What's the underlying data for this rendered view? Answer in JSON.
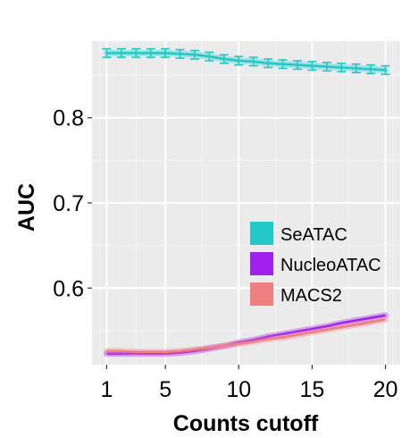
{
  "chart_data": {
    "type": "line",
    "xlabel": "Counts cutoff",
    "ylabel": "AUC",
    "x": [
      1,
      2,
      3,
      4,
      5,
      6,
      7,
      8,
      9,
      10,
      11,
      12,
      13,
      14,
      15,
      16,
      17,
      18,
      19,
      20
    ],
    "xticks": [
      1,
      5,
      10,
      15,
      20
    ],
    "yticks": [
      0.6,
      0.7,
      0.8
    ],
    "xticklabels": [
      "1",
      "5",
      "10",
      "15",
      "20"
    ],
    "yticklabels": [
      "0.6",
      "0.7",
      "0.8"
    ],
    "xlim": [
      0,
      21
    ],
    "ylim": [
      0.51,
      0.89
    ],
    "grid": true,
    "legend_position": "inside-right",
    "series": [
      {
        "name": "SeATAC",
        "color": "#22c8c8",
        "error_bars": true,
        "values": [
          0.876,
          0.876,
          0.876,
          0.876,
          0.876,
          0.875,
          0.874,
          0.872,
          0.869,
          0.867,
          0.866,
          0.864,
          0.863,
          0.862,
          0.861,
          0.86,
          0.859,
          0.858,
          0.857,
          0.856
        ]
      },
      {
        "name": "NucleoATAC",
        "color": "#a020f0",
        "error_bars": false,
        "values": [
          0.523,
          0.523,
          0.523,
          0.523,
          0.523,
          0.524,
          0.526,
          0.529,
          0.532,
          0.536,
          0.539,
          0.543,
          0.546,
          0.549,
          0.552,
          0.555,
          0.559,
          0.562,
          0.565,
          0.568
        ]
      },
      {
        "name": "MACS2",
        "color": "#f08080",
        "error_bars": false,
        "values": [
          0.526,
          0.526,
          0.525,
          0.525,
          0.525,
          0.526,
          0.528,
          0.53,
          0.532,
          0.535,
          0.537,
          0.54,
          0.542,
          0.545,
          0.548,
          0.551,
          0.554,
          0.557,
          0.56,
          0.563
        ]
      }
    ]
  }
}
